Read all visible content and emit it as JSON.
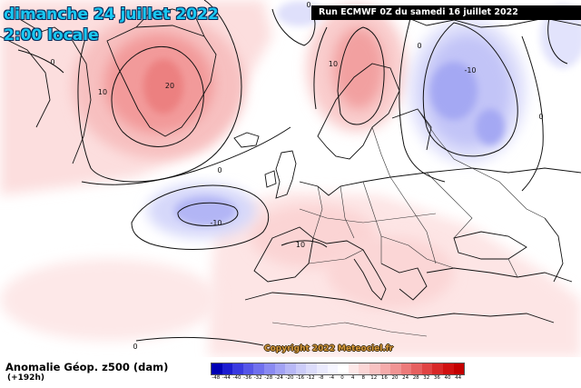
{
  "header": {
    "date": "dimanche 24 juillet 2022",
    "time": "2:00 locale",
    "run": "Run ECMWF 0Z du samedi 16 juillet 2022"
  },
  "footer": {
    "variable": "Anomalie Géop. z500 (dam)",
    "lead": "(+192h)",
    "copyright": "Copyright 2022 Meteociel.fr"
  },
  "map": {
    "contour_labels": [
      "20",
      "10",
      "10",
      "0",
      "0",
      "-10",
      "-10",
      "0",
      "0",
      "10",
      "0",
      "0",
      "0"
    ]
  },
  "legend": {
    "ticks": [
      "-48",
      "-44",
      "-40",
      "-36",
      "-32",
      "-28",
      "-24",
      "-20",
      "-16",
      "-12",
      "-8",
      "-4",
      "0",
      "4",
      "8",
      "12",
      "16",
      "20",
      "24",
      "28",
      "32",
      "36",
      "40",
      "44"
    ],
    "colors": [
      "#0000b4",
      "#1c1cd0",
      "#3a3ae0",
      "#5656e8",
      "#7070ee",
      "#8a8af2",
      "#a2a2f5",
      "#b8b8f7",
      "#ccccf9",
      "#dcdcfb",
      "#eaeafd",
      "#f6f6ff",
      "#ffffff",
      "#fde8e8",
      "#fbd6d6",
      "#f8c2c2",
      "#f5abab",
      "#f19494",
      "#ec7a7a",
      "#e66060",
      "#e04444",
      "#d82828",
      "#d01010",
      "#c40000"
    ]
  }
}
